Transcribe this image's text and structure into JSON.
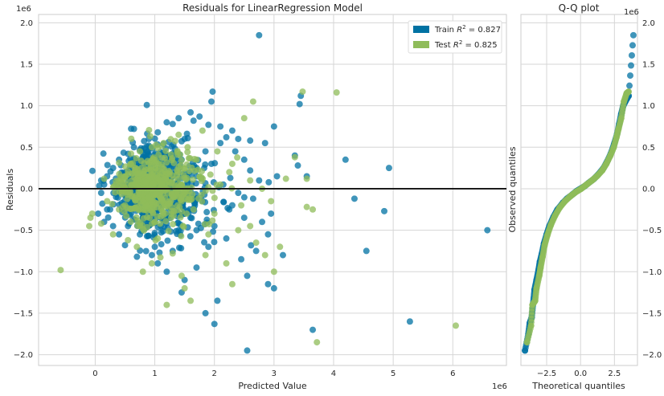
{
  "chart_data": [
    {
      "type": "scatter",
      "title": "Residuals for LinearRegression Model",
      "xlabel": "Predicted Value",
      "ylabel": "Residuals",
      "x_offset_label": "1e6",
      "y_offset_label": "1e6",
      "xlim": [
        -0.95,
        6.9
      ],
      "ylim": [
        -2.13,
        2.1
      ],
      "x_ticks": [
        0,
        1,
        2,
        3,
        4,
        5,
        6
      ],
      "x_tick_labels": [
        "0",
        "1",
        "2",
        "3",
        "4",
        "5",
        "6"
      ],
      "y_ticks": [
        -2.0,
        -1.5,
        -1.0,
        -0.5,
        0.0,
        0.5,
        1.0,
        1.5,
        2.0
      ],
      "y_tick_labels": [
        "−2.0",
        "−1.5",
        "−1.0",
        "−0.5",
        "0.0",
        "0.5",
        "1.0",
        "1.5",
        "2.0"
      ],
      "grid": true,
      "legend_position": "top-right",
      "zero_line": 0,
      "legend_labels": [
        {
          "prefix": "Train ",
          "sup": "2",
          "suffix": " = 0.827"
        },
        {
          "prefix": "Test ",
          "sup": "2",
          "suffix": " = 0.825"
        }
      ],
      "series": [
        {
          "name": "Train R² = 0.827",
          "color": "#0072a3",
          "points": [
            [
              2.75,
              1.85
            ],
            [
              1.97,
              1.17
            ],
            [
              1.95,
              1.05
            ],
            [
              3.45,
              1.12
            ],
            [
              3.43,
              1.02
            ],
            [
              1.6,
              0.92
            ],
            [
              1.75,
              0.87
            ],
            [
              1.4,
              0.85
            ],
            [
              1.65,
              0.82
            ],
            [
              1.2,
              0.8
            ],
            [
              1.3,
              0.78
            ],
            [
              1.9,
              0.77
            ],
            [
              2.1,
              0.75
            ],
            [
              2.3,
              0.7
            ],
            [
              2.2,
              0.62
            ],
            [
              2.4,
              0.6
            ],
            [
              2.6,
              0.58
            ],
            [
              2.85,
              0.55
            ],
            [
              3.0,
              0.75
            ],
            [
              3.35,
              0.4
            ],
            [
              3.4,
              0.28
            ],
            [
              3.55,
              0.15
            ],
            [
              4.2,
              0.35
            ],
            [
              4.93,
              0.25
            ],
            [
              4.35,
              -0.12
            ],
            [
              4.85,
              -0.27
            ],
            [
              4.55,
              -0.75
            ],
            [
              6.58,
              -0.5
            ],
            [
              5.28,
              -1.6
            ],
            [
              3.65,
              -1.7
            ],
            [
              2.55,
              -1.95
            ],
            [
              2.0,
              -1.63
            ],
            [
              2.05,
              -1.35
            ],
            [
              1.85,
              -1.5
            ],
            [
              2.9,
              -1.15
            ],
            [
              3.0,
              -1.2
            ],
            [
              2.55,
              -1.05
            ],
            [
              2.45,
              -0.85
            ],
            [
              2.9,
              -0.55
            ],
            [
              2.8,
              -0.4
            ],
            [
              2.3,
              -0.2
            ],
            [
              2.65,
              -0.12
            ],
            [
              2.75,
              0.1
            ],
            [
              2.6,
              0.22
            ],
            [
              2.35,
              0.45
            ],
            [
              2.1,
              0.55
            ],
            [
              1.7,
              -0.95
            ],
            [
              1.5,
              -1.1
            ],
            [
              1.45,
              -1.25
            ],
            [
              1.2,
              -1.0
            ],
            [
              1.05,
              -0.9
            ],
            [
              0.95,
              -0.8
            ],
            [
              0.7,
              -0.82
            ],
            [
              0.5,
              -0.68
            ],
            [
              0.4,
              -0.55
            ],
            [
              0.3,
              -0.45
            ],
            [
              0.15,
              -0.4
            ],
            [
              0.05,
              -0.3
            ],
            [
              1.0,
              -0.7
            ],
            [
              1.3,
              -0.75
            ],
            [
              1.9,
              -0.7
            ],
            [
              2.2,
              -0.6
            ],
            [
              2.5,
              -0.35
            ],
            [
              0.9,
              0.6
            ],
            [
              1.05,
              0.68
            ],
            [
              0.65,
              0.5
            ],
            [
              0.55,
              0.42
            ],
            [
              1.5,
              0.6
            ],
            [
              1.85,
              0.45
            ],
            [
              0.4,
              0.35
            ],
            [
              0.3,
              0.25
            ],
            [
              0.2,
              0.15
            ],
            [
              0.15,
              0.05
            ],
            [
              0.1,
              -0.05
            ],
            [
              0.12,
              -0.18
            ],
            [
              0.25,
              -0.25
            ],
            [
              0.6,
              -0.3
            ],
            [
              0.8,
              -0.35
            ],
            [
              1.1,
              -0.45
            ],
            [
              1.4,
              -0.5
            ],
            [
              1.7,
              -0.5
            ],
            [
              2.0,
              -0.45
            ],
            [
              1.6,
              -0.35
            ],
            [
              2.25,
              -0.25
            ],
            [
              1.95,
              0.3
            ],
            [
              1.7,
              0.25
            ],
            [
              1.45,
              0.35
            ],
            [
              1.25,
              0.4
            ],
            [
              0.85,
              0.38
            ],
            [
              1.15,
              0.15
            ],
            [
              1.35,
              -0.2
            ],
            [
              0.75,
              -0.55
            ],
            [
              2.7,
              -0.75
            ],
            [
              2.95,
              -0.3
            ],
            [
              3.05,
              0.15
            ],
            [
              2.5,
              0.35
            ],
            [
              3.15,
              -0.8
            ],
            [
              0.2,
              -0.25
            ],
            [
              0.1,
              0.1
            ],
            [
              0.35,
              -0.1
            ],
            [
              1.0,
              0.1
            ],
            [
              1.2,
              -0.1
            ],
            [
              0.55,
              -0.45
            ],
            [
              0.65,
              0.15
            ],
            [
              0.45,
              0.05
            ],
            [
              0.85,
              -0.15
            ],
            [
              1.55,
              0.1
            ],
            [
              1.8,
              -0.15
            ],
            [
              2.15,
              0.05
            ],
            [
              2.4,
              -0.05
            ]
          ],
          "cloud": {
            "center_x": 0.7,
            "center_y": 0.0,
            "spread_x": 0.55,
            "spread_y": 0.28,
            "count": 650
          }
        },
        {
          "name": "Test R² = 0.825",
          "color": "#8fbc5a",
          "points": [
            [
              -0.58,
              -0.98
            ],
            [
              3.48,
              1.17
            ],
            [
              4.05,
              1.16
            ],
            [
              2.65,
              1.05
            ],
            [
              6.05,
              -1.65
            ],
            [
              3.72,
              -1.85
            ],
            [
              1.2,
              -1.4
            ],
            [
              1.6,
              -1.35
            ],
            [
              2.3,
              -1.15
            ],
            [
              1.45,
              -1.05
            ],
            [
              1.5,
              -1.2
            ],
            [
              0.8,
              -1.0
            ],
            [
              0.95,
              -0.9
            ],
            [
              0.55,
              -0.62
            ],
            [
              0.3,
              -0.55
            ],
            [
              3.0,
              -1.0
            ],
            [
              2.85,
              -0.8
            ],
            [
              2.7,
              -0.65
            ],
            [
              3.55,
              -0.22
            ],
            [
              3.65,
              -0.25
            ],
            [
              3.55,
              0.12
            ],
            [
              3.2,
              0.12
            ],
            [
              3.35,
              0.38
            ],
            [
              2.5,
              0.85
            ],
            [
              2.3,
              0.3
            ],
            [
              2.05,
              0.45
            ],
            [
              1.8,
              0.7
            ],
            [
              1.4,
              0.65
            ],
            [
              1.15,
              0.55
            ],
            [
              2.0,
              -0.3
            ],
            [
              2.4,
              -0.5
            ],
            [
              2.6,
              -0.45
            ],
            [
              1.85,
              -0.8
            ],
            [
              2.2,
              -0.9
            ],
            [
              1.3,
              -0.78
            ],
            [
              1.05,
              -0.6
            ],
            [
              -0.05,
              -0.3
            ],
            [
              -0.1,
              -0.45
            ],
            [
              -0.08,
              -0.35
            ],
            [
              0.1,
              -0.42
            ],
            [
              2.8,
              0.0
            ],
            [
              2.95,
              -0.15
            ],
            [
              2.6,
              0.1
            ],
            [
              2.1,
              0.05
            ],
            [
              1.7,
              0.35
            ],
            [
              1.55,
              0.5
            ],
            [
              2.25,
              0.2
            ],
            [
              1.9,
              -0.55
            ],
            [
              3.1,
              -0.7
            ],
            [
              0.4,
              -0.25
            ],
            [
              0.6,
              0.3
            ],
            [
              0.75,
              0.45
            ],
            [
              0.95,
              0.5
            ],
            [
              1.25,
              0.2
            ],
            [
              1.0,
              -0.4
            ],
            [
              0.7,
              -0.7
            ],
            [
              2.45,
              -0.2
            ],
            [
              1.65,
              -0.25
            ],
            [
              0.2,
              -0.15
            ],
            [
              0.15,
              0.12
            ],
            [
              0.5,
              0.0
            ],
            [
              0.85,
              0.08
            ],
            [
              1.1,
              -0.12
            ],
            [
              1.45,
              0.05
            ]
          ],
          "cloud": {
            "center_x": 0.72,
            "center_y": 0.0,
            "spread_x": 0.5,
            "spread_y": 0.22,
            "count": 500
          }
        }
      ]
    },
    {
      "type": "scatter",
      "title": "Q-Q plot",
      "xlabel": "Theoretical quantiles",
      "ylabel": "Observed quantiles",
      "y_offset_label": "1e6",
      "xlim": [
        -4.4,
        4.2
      ],
      "ylim": [
        -2.13,
        2.1
      ],
      "x_ticks": [
        -2.5,
        0.0,
        2.5
      ],
      "x_tick_labels": [
        "−2.5",
        "0.0",
        "2.5"
      ],
      "y_ticks": [
        -2.0,
        -1.5,
        -1.0,
        -0.5,
        0.0,
        0.5,
        1.0,
        1.5,
        2.0
      ],
      "y_tick_labels": [
        "−2.0",
        "−1.5",
        "−1.0",
        "−0.5",
        "0.0",
        "0.5",
        "1.0",
        "1.5",
        "2.0"
      ],
      "grid": true,
      "series": [
        {
          "name": "Train",
          "color": "#0072a3",
          "points": [
            [
              -4.1,
              -1.95
            ],
            [
              -3.85,
              -1.75
            ],
            [
              -3.75,
              -1.62
            ],
            [
              -3.6,
              -1.55
            ],
            [
              -3.5,
              -1.38
            ],
            [
              -3.4,
              -1.22
            ],
            [
              -3.25,
              -1.1
            ],
            [
              -3.1,
              -0.98
            ],
            [
              -3.0,
              -0.88
            ],
            [
              -2.85,
              -0.78
            ],
            [
              -2.7,
              -0.66
            ],
            [
              -2.5,
              -0.55
            ],
            [
              -2.3,
              -0.45
            ],
            [
              -2.0,
              -0.34
            ],
            [
              -1.7,
              -0.25
            ],
            [
              -1.3,
              -0.17
            ],
            [
              -1.0,
              -0.12
            ],
            [
              -0.6,
              -0.07
            ],
            [
              -0.3,
              -0.03
            ],
            [
              0.0,
              0.0
            ],
            [
              0.3,
              0.03
            ],
            [
              0.6,
              0.07
            ],
            [
              1.0,
              0.12
            ],
            [
              1.3,
              0.17
            ],
            [
              1.7,
              0.25
            ],
            [
              2.0,
              0.34
            ],
            [
              2.3,
              0.45
            ],
            [
              2.5,
              0.55
            ],
            [
              2.7,
              0.66
            ],
            [
              2.85,
              0.78
            ],
            [
              3.0,
              0.9
            ],
            [
              3.15,
              1.0
            ],
            [
              3.3,
              1.05
            ],
            [
              3.55,
              1.12
            ],
            [
              3.9,
              1.85
            ]
          ]
        },
        {
          "name": "Test",
          "color": "#8fbc5a",
          "points": [
            [
              -3.95,
              -1.85
            ],
            [
              -3.65,
              -1.65
            ],
            [
              -3.55,
              -1.4
            ],
            [
              -3.35,
              -1.35
            ],
            [
              -3.25,
              -1.2
            ],
            [
              -3.05,
              -1.05
            ],
            [
              -2.95,
              -0.95
            ],
            [
              -2.8,
              -0.82
            ],
            [
              -2.65,
              -0.68
            ],
            [
              -2.45,
              -0.56
            ],
            [
              -2.2,
              -0.44
            ],
            [
              -1.9,
              -0.33
            ],
            [
              -1.55,
              -0.23
            ],
            [
              -1.15,
              -0.15
            ],
            [
              -0.75,
              -0.09
            ],
            [
              -0.35,
              -0.04
            ],
            [
              0.05,
              0.0
            ],
            [
              0.45,
              0.05
            ],
            [
              0.85,
              0.1
            ],
            [
              1.2,
              0.15
            ],
            [
              1.6,
              0.22
            ],
            [
              1.9,
              0.3
            ],
            [
              2.2,
              0.4
            ],
            [
              2.45,
              0.5
            ],
            [
              2.65,
              0.62
            ],
            [
              2.8,
              0.72
            ],
            [
              3.0,
              0.85
            ],
            [
              3.2,
              1.05
            ],
            [
              3.4,
              1.15
            ],
            [
              3.55,
              1.17
            ]
          ]
        }
      ]
    }
  ]
}
